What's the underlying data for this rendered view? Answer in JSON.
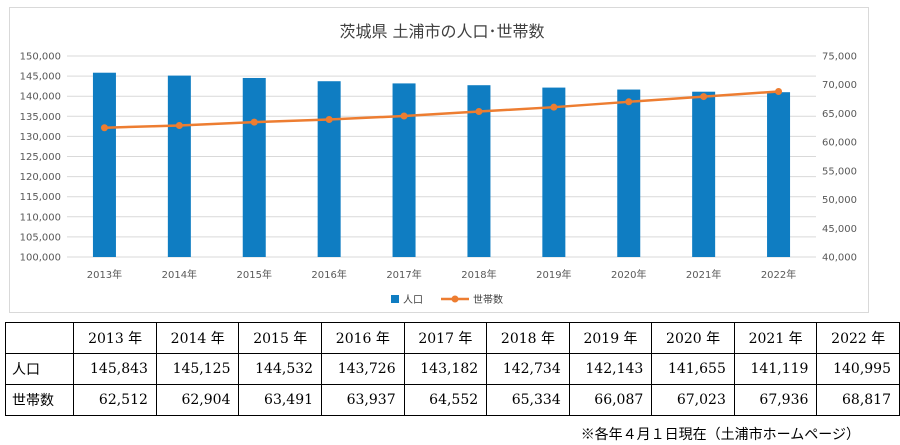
{
  "chart_data": {
    "type": "bar+line",
    "title": "茨城県 土浦市の人口･世帯数",
    "categories": [
      "2013年",
      "2014年",
      "2015年",
      "2016年",
      "2017年",
      "2018年",
      "2019年",
      "2020年",
      "2021年",
      "2022年"
    ],
    "series": [
      {
        "name": "人口",
        "type": "bar",
        "axis": "left",
        "color": "#0f7dc2",
        "values": [
          145843,
          145125,
          144532,
          143726,
          143182,
          142734,
          142143,
          141655,
          141119,
          140995
        ]
      },
      {
        "name": "世帯数",
        "type": "line",
        "axis": "right",
        "color": "#ed7d31",
        "values": [
          62512,
          62904,
          63491,
          63937,
          64552,
          65334,
          66087,
          67023,
          67936,
          68817
        ]
      }
    ],
    "y_left": {
      "min": 100000,
      "max": 150000,
      "step": 5000,
      "ticks": [
        "100,000",
        "105,000",
        "110,000",
        "115,000",
        "120,000",
        "125,000",
        "130,000",
        "135,000",
        "140,000",
        "145,000",
        "150,000"
      ]
    },
    "y_right": {
      "min": 40000,
      "max": 75000,
      "step": 5000,
      "ticks": [
        "40,000",
        "45,000",
        "50,000",
        "55,000",
        "60,000",
        "65,000",
        "70,000",
        "75,000"
      ]
    },
    "grid": true,
    "legend_position": "bottom"
  },
  "table": {
    "headers": [
      "2013 年",
      "2014 年",
      "2015 年",
      "2016 年",
      "2017 年",
      "2018 年",
      "2019 年",
      "2020 年",
      "2021 年",
      "2022 年"
    ],
    "rows": [
      {
        "label": "人口",
        "values": [
          "145,843",
          "145,125",
          "144,532",
          "143,726",
          "143,182",
          "142,734",
          "142,143",
          "141,655",
          "141,119",
          "140,995"
        ]
      },
      {
        "label": "世帯数",
        "values": [
          "62,512",
          "62,904",
          "63,491",
          "63,937",
          "64,552",
          "65,334",
          "66,087",
          "67,023",
          "67,936",
          "68,817"
        ]
      }
    ]
  },
  "note": "※各年４月１日現在（土浦市ホームページ）"
}
